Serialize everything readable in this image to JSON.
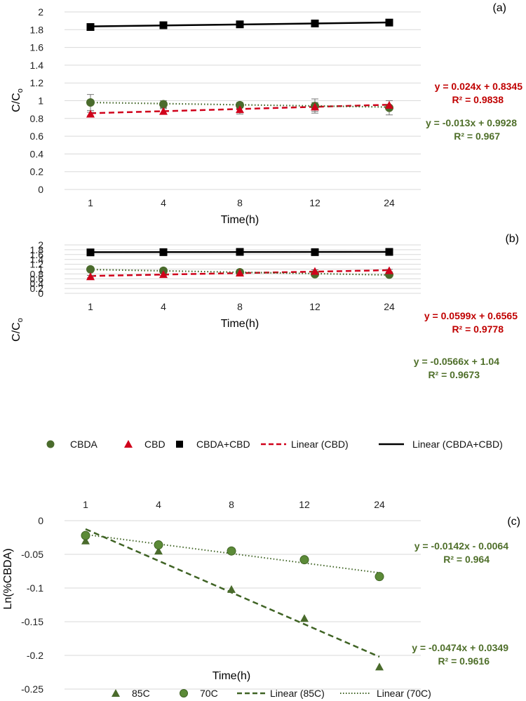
{
  "colors": {
    "cbda": "#4a6b2c",
    "cbd": "#d0021b",
    "sum": "#000000",
    "eq_red": "#c00000",
    "eq_green": "#4f6f2a",
    "grid": "#d9d9d9",
    "err": "#777777"
  },
  "legend_top": {
    "cbda": "CBDA",
    "cbd": "CBD",
    "sum": "CBDA+CBD",
    "lin_cbd": "Linear (CBD)",
    "lin_sum": "Linear (CBDA+CBD)"
  },
  "legend_bottom": {
    "s85": "85C",
    "s70": "70C",
    "lin85": "Linear (85C)",
    "lin70": "Linear (70C)"
  },
  "chart_data": [
    {
      "panel": "(a)",
      "type": "line",
      "categories": [
        "1",
        "4",
        "8",
        "12",
        "24"
      ],
      "xlabel": "Time(h)",
      "ylabel": "C/Co",
      "ylabel_main": "C/C",
      "ylabel_sub": "o",
      "ylim": [
        0,
        2
      ],
      "yticks": [
        "0",
        "0.2",
        "0.4",
        "0.6",
        "0.8",
        "1",
        "1.2",
        "1.4",
        "1.6",
        "1.8",
        "2"
      ],
      "series": [
        {
          "key": "cbda",
          "name": "CBDA",
          "values": [
            0.98,
            0.96,
            0.95,
            0.94,
            0.92
          ],
          "err": [
            0.09,
            0.04,
            0.03,
            0.08,
            0.08
          ]
        },
        {
          "key": "cbd",
          "name": "CBD",
          "values": [
            0.85,
            0.88,
            0.9,
            0.93,
            0.95
          ],
          "err": [
            0.02,
            0.03,
            0.05,
            0.05,
            0.05
          ]
        },
        {
          "key": "sum",
          "name": "CBDA+CBD",
          "values": [
            1.83,
            1.85,
            1.86,
            1.87,
            1.88
          ],
          "err": [
            0.01,
            0.01,
            0.01,
            0.01,
            0.01
          ]
        }
      ],
      "trendlines": [
        {
          "key": "sum",
          "slope": 0.011,
          "intercept": 1.826
        },
        {
          "key": "cbd",
          "slope": 0.024,
          "intercept": 0.8345
        },
        {
          "key": "cbda",
          "slope": -0.013,
          "intercept": 0.9928
        }
      ],
      "equations": {
        "cbd": {
          "eq": "y = 0.024x + 0.8345",
          "r2": "R² = 0.9838"
        },
        "cbda": {
          "eq": "y = -0.013x + 0.9928",
          "r2": "R² = 0.967"
        }
      }
    },
    {
      "panel": "(b)",
      "type": "line",
      "categories": [
        "1",
        "4",
        "8",
        "12",
        "24"
      ],
      "xlabel": "Time(h)",
      "ylabel": "C/Co",
      "ylabel_main": "C/C",
      "ylabel_sub": "o",
      "ylim": [
        0,
        2
      ],
      "yticks": [
        "0",
        "0.2",
        "0.4",
        "0.6",
        "0.8",
        "1",
        "1.2",
        "1.4",
        "1.6",
        "1.8",
        "2"
      ],
      "series": [
        {
          "key": "cbda",
          "name": "CBDA",
          "values": [
            0.99,
            0.93,
            0.87,
            0.79,
            0.77
          ],
          "err": [
            0.04,
            0.05,
            0.04,
            0.05,
            0.04
          ]
        },
        {
          "key": "cbd",
          "name": "CBD",
          "values": [
            0.69,
            0.78,
            0.84,
            0.91,
            0.94
          ],
          "err": [
            0.05,
            0.04,
            0.03,
            0.06,
            0.05
          ]
        },
        {
          "key": "sum",
          "name": "CBDA+CBD",
          "values": [
            1.69,
            1.7,
            1.71,
            1.7,
            1.71
          ],
          "err": [
            0.01,
            0.01,
            0.01,
            0.01,
            0.01
          ]
        }
      ],
      "trendlines": [
        {
          "key": "sum",
          "slope": 0.003,
          "intercept": 1.696
        },
        {
          "key": "cbd",
          "slope": 0.0599,
          "intercept": 0.6565
        },
        {
          "key": "cbda",
          "slope": -0.0566,
          "intercept": 1.04
        }
      ],
      "equations": {
        "cbd": {
          "eq": "y = 0.0599x + 0.6565",
          "r2": "R² = 0.9778"
        },
        "cbda": {
          "eq": "y = -0.0566x + 1.04",
          "r2": "R² = 0.9673"
        }
      }
    },
    {
      "panel": "(c)",
      "type": "scatter",
      "categories": [
        "1",
        "4",
        "8",
        "12",
        "24"
      ],
      "xlabel": "Time(h)",
      "ylabel": "Ln(%CBDA)",
      "ylim": [
        -0.25,
        0
      ],
      "yticks": [
        "-0.25",
        "-0.2",
        "-0.15",
        "-0.1",
        "-0.05",
        "0"
      ],
      "series": [
        {
          "key": "s85",
          "name": "85C",
          "values": [
            -0.03,
            -0.045,
            -0.102,
            -0.145,
            -0.217
          ]
        },
        {
          "key": "s70",
          "name": "70C",
          "values": [
            -0.022,
            -0.036,
            -0.045,
            -0.058,
            -0.083
          ]
        }
      ],
      "trendlines": [
        {
          "key": "s85",
          "slope": -0.0474,
          "intercept": 0.0349
        },
        {
          "key": "s70",
          "slope": -0.0142,
          "intercept": -0.0064
        }
      ],
      "equations": {
        "s70": {
          "eq": "y = -0.0142x - 0.0064",
          "r2": "R² = 0.964"
        },
        "s85": {
          "eq": "y = -0.0474x + 0.0349",
          "r2": "R² = 0.9616"
        }
      }
    }
  ]
}
